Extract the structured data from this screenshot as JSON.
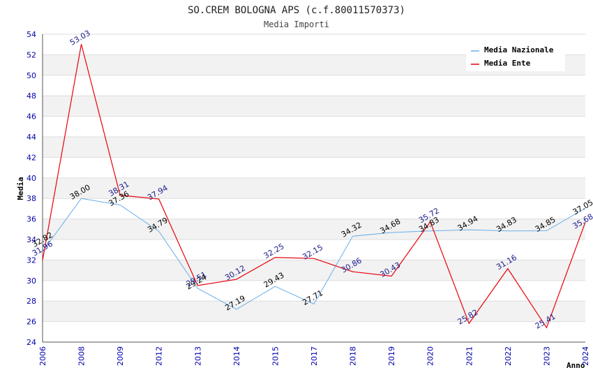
{
  "chart_data": {
    "type": "line",
    "title": "SO.CREM BOLOGNA APS (c.f.80011570373)",
    "subtitle": "Media Importi",
    "xlabel": "Anno",
    "ylabel": "Media",
    "ylim": [
      24,
      54
    ],
    "ytick_step": 2,
    "categories": [
      "2006",
      "2008",
      "2009",
      "2012",
      "2013",
      "2014",
      "2015",
      "2017",
      "2018",
      "2019",
      "2020",
      "2021",
      "2022",
      "2023",
      "2024"
    ],
    "series": [
      {
        "name": "Media Nazionale",
        "color": "#6aaee8",
        "values": [
          32.82,
          38.0,
          37.36,
          34.79,
          29.24,
          27.19,
          29.43,
          27.71,
          34.32,
          34.68,
          34.83,
          34.94,
          34.83,
          34.85,
          37.05
        ],
        "labels": [
          "32.82",
          "38.00",
          "37.36",
          "34.79",
          "29.24",
          "27.19",
          "29.43",
          "27.71",
          "34.32",
          "34.68",
          "34.83",
          "34.94",
          "34.83",
          "34.85",
          "37.05"
        ]
      },
      {
        "name": "Media Ente",
        "color": "#e8000b",
        "values": [
          31.96,
          53.03,
          38.31,
          37.94,
          29.51,
          30.12,
          32.25,
          32.15,
          30.86,
          30.43,
          35.72,
          25.82,
          31.16,
          25.41,
          35.68
        ],
        "labels": [
          "31.96",
          "53.03",
          "38.31",
          "37.94",
          "29.51",
          "30.12",
          "32.25",
          "32.15",
          "30.86",
          "30.43",
          "35.72",
          "25.82",
          "31.16",
          "25.41",
          "35.68"
        ]
      }
    ],
    "legend_position": "top-right",
    "grid": true
  }
}
